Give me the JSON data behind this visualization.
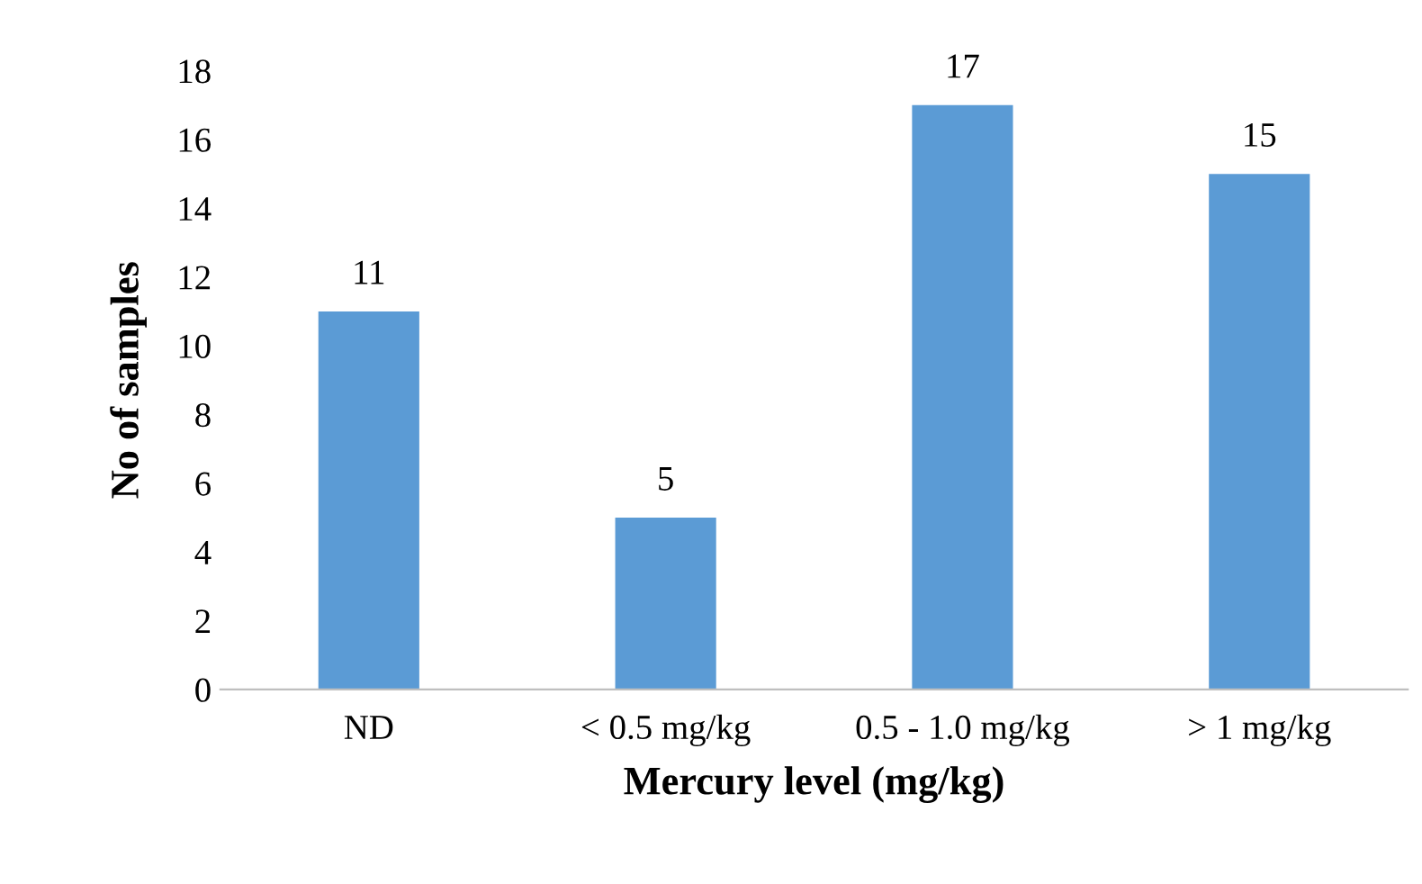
{
  "chart_data": {
    "type": "bar",
    "xlabel": "Mercury level (mg/kg)",
    "ylabel": "No of samples",
    "categories": [
      "ND",
      "< 0.5 mg/kg",
      "0.5 - 1.0 mg/kg",
      "> 1 mg/kg"
    ],
    "values": [
      11,
      5,
      17,
      15
    ],
    "color": "#5b9bd5",
    "ylim": [
      0,
      18
    ],
    "yticks": [
      0,
      2,
      4,
      6,
      8,
      10,
      12,
      14,
      16,
      18
    ],
    "data_labels": true,
    "grid": false,
    "legend": false
  }
}
